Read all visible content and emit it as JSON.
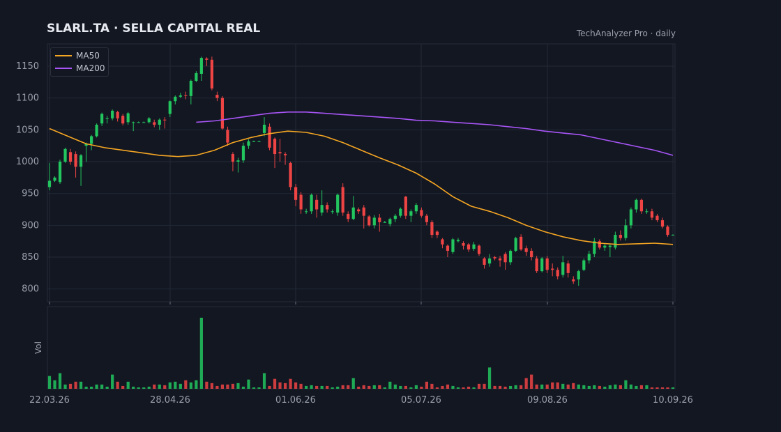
{
  "header": {
    "title": "SLARL.TA  ·  SELLA CAPITAL REAL",
    "subtitle": "TechAnalyzer Pro · daily"
  },
  "legend": {
    "ma50": "MA50",
    "ma200": "MA200"
  },
  "colors": {
    "background": "#131722",
    "up": "#22c55e",
    "down": "#ef4444",
    "ma50": "#f5a623",
    "ma200": "#a855f7",
    "grid": "#232837",
    "axis_text": "#9aa0ac"
  },
  "chart_data": {
    "type": "candlestick",
    "price_axis": {
      "ylim": [
        780,
        1185
      ],
      "ticks": [
        800,
        850,
        900,
        950,
        1000,
        1050,
        1100,
        1150
      ]
    },
    "volume_axis": {
      "label": "Vol"
    },
    "x_ticks": [
      "22.03.26",
      "28.04.26",
      "01.06.26",
      "05.07.26",
      "09.08.26",
      "10.09.26"
    ],
    "grid": true,
    "legend_position": "top-left",
    "candles": [
      [
        960,
        970,
        955,
        998,
        0.18
      ],
      [
        970,
        975,
        968,
        977,
        0.12
      ],
      [
        968,
        1000,
        965,
        1003,
        0.22
      ],
      [
        1000,
        1020,
        998,
        1022,
        0.06
      ],
      [
        1015,
        1000,
        995,
        1020,
        0.07
      ],
      [
        1012,
        992,
        975,
        1016,
        0.1
      ],
      [
        992,
        1010,
        962,
        1012,
        0.1
      ],
      [
        1025,
        1028,
        1000,
        1030,
        0.03
      ],
      [
        1028,
        1040,
        1018,
        1042,
        0.03
      ],
      [
        1040,
        1058,
        1038,
        1060,
        0.06
      ],
      [
        1060,
        1075,
        1056,
        1077,
        0.06
      ],
      [
        1068,
        1068,
        1060,
        1072,
        0.03
      ],
      [
        1068,
        1080,
        1065,
        1082,
        0.2
      ],
      [
        1078,
        1068,
        1063,
        1080,
        0.1
      ],
      [
        1072,
        1060,
        1057,
        1075,
        0.04
      ],
      [
        1062,
        1076,
        1058,
        1078,
        0.1
      ],
      [
        1061,
        1062,
        1048,
        1063,
        0.03
      ],
      [
        1062,
        1062,
        1061,
        1063,
        0.01
      ],
      [
        1062,
        1062,
        1061,
        1063,
        0.01
      ],
      [
        1062,
        1068,
        1060,
        1070,
        0.03
      ],
      [
        1062,
        1058,
        1054,
        1066,
        0.06
      ],
      [
        1058,
        1066,
        1050,
        1068,
        0.06
      ],
      [
        1066,
        1065,
        1052,
        1070,
        0.05
      ],
      [
        1075,
        1095,
        1070,
        1096,
        0.09
      ],
      [
        1095,
        1102,
        1090,
        1104,
        0.1
      ],
      [
        1102,
        1104,
        1100,
        1108,
        0.07
      ],
      [
        1104,
        1103,
        1098,
        1110,
        0.12
      ],
      [
        1103,
        1127,
        1090,
        1129,
        0.09
      ],
      [
        1127,
        1139,
        1125,
        1142,
        0.12
      ],
      [
        1138,
        1163,
        1127,
        1165,
        1.0
      ],
      [
        1162,
        1160,
        1150,
        1164,
        0.1
      ],
      [
        1160,
        1115,
        1112,
        1165,
        0.08
      ],
      [
        1105,
        1100,
        1095,
        1110,
        0.04
      ],
      [
        1100,
        1052,
        1050,
        1103,
        0.06
      ],
      [
        1050,
        1030,
        1025,
        1055,
        0.06
      ],
      [
        1012,
        1000,
        985,
        1015,
        0.07
      ],
      [
        1000,
        1002,
        983,
        1006,
        0.08
      ],
      [
        1002,
        1025,
        998,
        1030,
        0.03
      ],
      [
        1025,
        1032,
        1020,
        1035,
        0.13
      ],
      [
        1032,
        1032,
        1031,
        1033,
        0.01
      ],
      [
        1032,
        1032,
        1031,
        1033,
        0.01
      ],
      [
        1045,
        1058,
        1040,
        1070,
        0.22
      ],
      [
        1055,
        1022,
        1018,
        1060,
        0.04
      ],
      [
        1036,
        1012,
        990,
        1038,
        0.14
      ],
      [
        1015,
        1013,
        1000,
        1036,
        0.09
      ],
      [
        1012,
        1010,
        995,
        1015,
        0.08
      ],
      [
        998,
        960,
        955,
        1000,
        0.14
      ],
      [
        960,
        940,
        930,
        965,
        0.09
      ],
      [
        948,
        925,
        918,
        952,
        0.07
      ],
      [
        922,
        922,
        918,
        926,
        0.04
      ],
      [
        922,
        948,
        918,
        950,
        0.05
      ],
      [
        940,
        925,
        912,
        948,
        0.04
      ],
      [
        920,
        932,
        915,
        955,
        0.04
      ],
      [
        932,
        925,
        920,
        936,
        0.04
      ],
      [
        922,
        922,
        918,
        925,
        0.02
      ],
      [
        920,
        948,
        915,
        950,
        0.03
      ],
      [
        960,
        920,
        915,
        966,
        0.05
      ],
      [
        918,
        910,
        905,
        922,
        0.05
      ],
      [
        910,
        928,
        908,
        946,
        0.15
      ],
      [
        925,
        922,
        918,
        928,
        0.03
      ],
      [
        928,
        915,
        895,
        932,
        0.05
      ],
      [
        914,
        900,
        898,
        916,
        0.04
      ],
      [
        900,
        912,
        895,
        916,
        0.05
      ],
      [
        912,
        905,
        890,
        918,
        0.05
      ],
      [
        905,
        905,
        904,
        907,
        0.02
      ],
      [
        902,
        910,
        898,
        912,
        0.1
      ],
      [
        910,
        915,
        905,
        918,
        0.06
      ],
      [
        915,
        926,
        912,
        928,
        0.04
      ],
      [
        945,
        915,
        910,
        946,
        0.04
      ],
      [
        915,
        922,
        905,
        925,
        0.02
      ],
      [
        922,
        932,
        918,
        935,
        0.05
      ],
      [
        924,
        915,
        912,
        928,
        0.03
      ],
      [
        915,
        905,
        900,
        918,
        0.1
      ],
      [
        905,
        885,
        880,
        908,
        0.07
      ],
      [
        890,
        885,
        880,
        892,
        0.02
      ],
      [
        878,
        870,
        864,
        880,
        0.04
      ],
      [
        868,
        860,
        850,
        870,
        0.06
      ],
      [
        858,
        878,
        855,
        880,
        0.04
      ],
      [
        875,
        877,
        873,
        880,
        0.02
      ],
      [
        872,
        868,
        862,
        875,
        0.02
      ],
      [
        870,
        862,
        858,
        872,
        0.03
      ],
      [
        863,
        870,
        860,
        874,
        0.02
      ],
      [
        868,
        855,
        852,
        870,
        0.07
      ],
      [
        848,
        838,
        832,
        850,
        0.07
      ],
      [
        840,
        848,
        835,
        855,
        0.3
      ],
      [
        850,
        848,
        845,
        852,
        0.04
      ],
      [
        848,
        845,
        835,
        852,
        0.04
      ],
      [
        855,
        842,
        830,
        858,
        0.03
      ],
      [
        842,
        860,
        838,
        862,
        0.04
      ],
      [
        860,
        880,
        858,
        882,
        0.05
      ],
      [
        882,
        862,
        860,
        886,
        0.05
      ],
      [
        864,
        858,
        852,
        868,
        0.15
      ],
      [
        860,
        850,
        845,
        864,
        0.2
      ],
      [
        848,
        828,
        825,
        852,
        0.06
      ],
      [
        828,
        848,
        826,
        850,
        0.06
      ],
      [
        848,
        830,
        825,
        852,
        0.06
      ],
      [
        832,
        830,
        820,
        840,
        0.09
      ],
      [
        830,
        820,
        815,
        834,
        0.09
      ],
      [
        822,
        842,
        818,
        852,
        0.07
      ],
      [
        840,
        825,
        818,
        845,
        0.06
      ],
      [
        815,
        812,
        808,
        820,
        0.08
      ],
      [
        815,
        828,
        805,
        830,
        0.06
      ],
      [
        830,
        845,
        828,
        848,
        0.05
      ],
      [
        845,
        855,
        840,
        860,
        0.04
      ],
      [
        855,
        875,
        850,
        880,
        0.05
      ],
      [
        875,
        865,
        862,
        878,
        0.04
      ],
      [
        865,
        868,
        860,
        872,
        0.03
      ],
      [
        866,
        868,
        850,
        870,
        0.05
      ],
      [
        865,
        885,
        862,
        890,
        0.06
      ],
      [
        885,
        880,
        876,
        892,
        0.05
      ],
      [
        880,
        900,
        876,
        910,
        0.12
      ],
      [
        900,
        925,
        895,
        928,
        0.06
      ],
      [
        925,
        940,
        920,
        942,
        0.04
      ],
      [
        940,
        922,
        918,
        942,
        0.05
      ],
      [
        922,
        922,
        918,
        926,
        0.05
      ],
      [
        922,
        912,
        908,
        926,
        0.02
      ],
      [
        915,
        908,
        905,
        918,
        0.02
      ],
      [
        908,
        898,
        895,
        912,
        0.02
      ],
      [
        898,
        885,
        882,
        900,
        0.02
      ],
      [
        885,
        885,
        884,
        886,
        0.01
      ]
    ],
    "ma50": [
      1052,
      1040,
      1028,
      1022,
      1018,
      1014,
      1010,
      1008,
      1010,
      1018,
      1030,
      1038,
      1044,
      1048,
      1046,
      1040,
      1030,
      1018,
      1006,
      995,
      982,
      965,
      945,
      930,
      922,
      912,
      900,
      890,
      882,
      876,
      872,
      870,
      871,
      872,
      870
    ],
    "ma200": [
      null,
      null,
      null,
      null,
      null,
      null,
      null,
      null,
      1062,
      1064,
      1068,
      1072,
      1076,
      1078,
      1078,
      1076,
      1074,
      1072,
      1070,
      1068,
      1065,
      1064,
      1062,
      1060,
      1058,
      1055,
      1052,
      1048,
      1045,
      1042,
      1036,
      1030,
      1024,
      1018,
      1010
    ]
  }
}
